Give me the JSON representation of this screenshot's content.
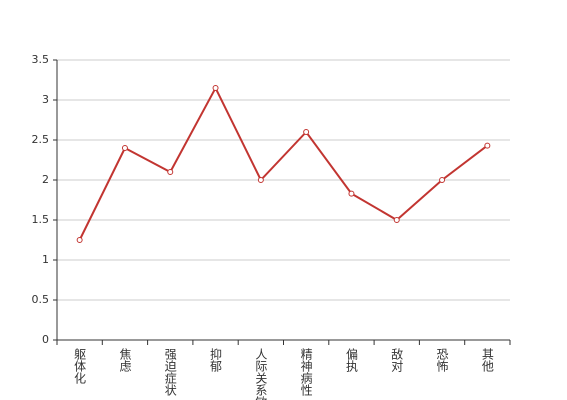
{
  "chart_data": {
    "type": "line",
    "categories": [
      "躯体化",
      "焦虑",
      "强迫症状",
      "抑郁",
      "人际关系敏感",
      "精神病性",
      "偏执",
      "敌对",
      "恐怖",
      "其他"
    ],
    "series": [
      {
        "color": "#c23531",
        "values": [
          1.25,
          2.4,
          2.1,
          3.15,
          2.0,
          2.6,
          1.83,
          1.5,
          2.0,
          2.43
        ]
      }
    ],
    "ylim": [
      0,
      3.5
    ],
    "yticks": [
      0,
      0.5,
      1,
      1.5,
      2,
      2.5,
      3,
      3.5
    ],
    "grid": true
  }
}
